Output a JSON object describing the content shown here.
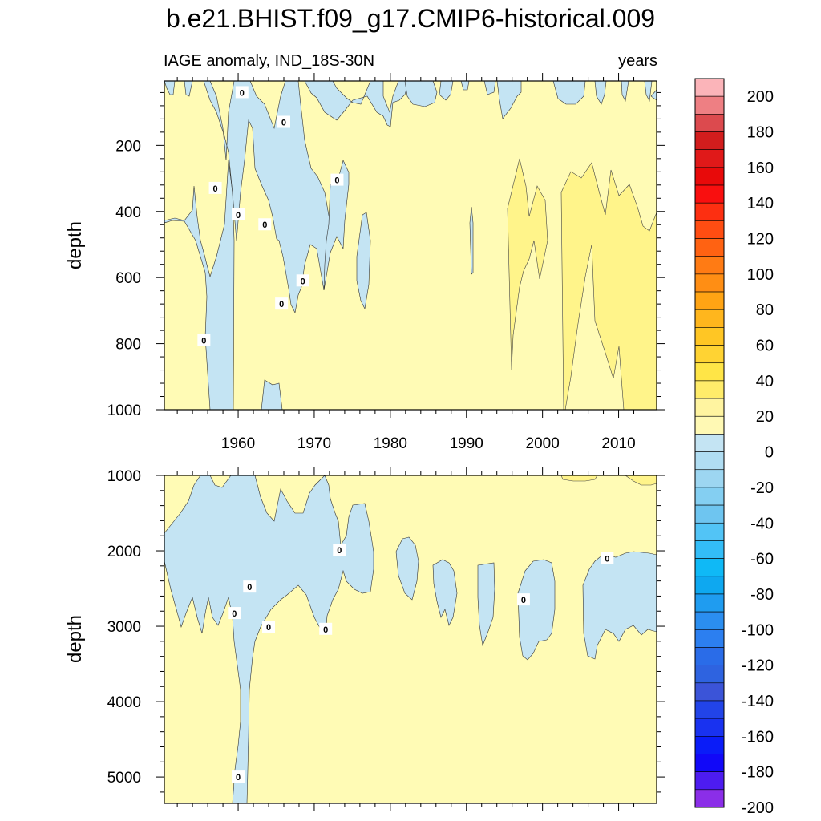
{
  "chart_data": {
    "type": "contour",
    "title": "b.e21.BHIST.f09_g17.CMIP6-historical.009",
    "subtitle_left": "IAGE anomaly, IND_18S-30N",
    "subtitle_right": "years",
    "x_ticks": [
      "1960",
      "1970",
      "1980",
      "1990",
      "2000",
      "2010"
    ],
    "xlim": [
      1950.3,
      2015
    ],
    "panels": [
      {
        "name": "upper-ocean",
        "ylabel": "depth",
        "ylim": [
          5,
          1000
        ],
        "y_ticks": [
          "200",
          "400",
          "600",
          "800",
          "1000"
        ],
        "contour_labels": [
          {
            "x": 1960.5,
            "y": 40,
            "text": "0"
          },
          {
            "x": 1966,
            "y": 130,
            "text": "0"
          },
          {
            "x": 1957,
            "y": 330,
            "text": "0"
          },
          {
            "x": 1973,
            "y": 305,
            "text": "0"
          },
          {
            "x": 1960,
            "y": 410,
            "text": "0"
          },
          {
            "x": 1963.5,
            "y": 440,
            "text": "0"
          },
          {
            "x": 1968.5,
            "y": 610,
            "text": "0"
          },
          {
            "x": 1965.7,
            "y": 680,
            "text": "0"
          },
          {
            "x": 1955.5,
            "y": 790,
            "text": "0"
          }
        ]
      },
      {
        "name": "deep-ocean",
        "ylabel": "depth",
        "ylim": [
          1000,
          5350
        ],
        "y_ticks": [
          "1000",
          "2000",
          "3000",
          "4000",
          "5000"
        ],
        "contour_labels": [
          {
            "x": 1973.3,
            "y": 1990,
            "text": "0"
          },
          {
            "x": 1961.5,
            "y": 2480,
            "text": "0"
          },
          {
            "x": 1959.5,
            "y": 2830,
            "text": "0"
          },
          {
            "x": 1964,
            "y": 3010,
            "text": "0"
          },
          {
            "x": 1971.5,
            "y": 3040,
            "text": "0"
          },
          {
            "x": 1997.5,
            "y": 2650,
            "text": "0"
          },
          {
            "x": 2008.5,
            "y": 2100,
            "text": "0"
          },
          {
            "x": 1960,
            "y": 5000,
            "text": "0"
          }
        ]
      }
    ],
    "colorbar": {
      "labels": [
        "200",
        "180",
        "160",
        "140",
        "120",
        "100",
        "80",
        "60",
        "40",
        "20",
        "0",
        "-20",
        "-40",
        "-60",
        "-80",
        "-100",
        "-120",
        "-140",
        "-160",
        "-180",
        "-200"
      ],
      "colors": [
        "#fbb4b9",
        "#ee7f83",
        "#dc4a4e",
        "#d21d1d",
        "#e01919",
        "#e80a0a",
        "#f90f0f",
        "#fd2f11",
        "#ff4d12",
        "#ff6212",
        "#ff7b14",
        "#ff8e14",
        "#ffa414",
        "#ffb61d",
        "#ffc624",
        "#ffd333",
        "#ffe547",
        "#ffec6a",
        "#fff4a0",
        "#fff9b4",
        "#c4e4f3",
        "#b0ddf2",
        "#9dd6f1",
        "#84cff2",
        "#6ec5f0",
        "#52c4f6",
        "#33bdf7",
        "#0fb9f6",
        "#0ea8f0",
        "#1f9cf0",
        "#2b8ef0",
        "#2c7ff0",
        "#2a6ce8",
        "#2e63e0",
        "#3b54d8",
        "#2244e8",
        "#1932f0",
        "#0a1cf8",
        "#1108f8",
        "#4d1cf0",
        "#8b2ee8"
      ],
      "pos_colors": {
        "zero_to_20": "#fffbb5",
        "plus_20_40": "#fff48a",
        "minus_0_20": "#c4e4f3"
      }
    }
  }
}
